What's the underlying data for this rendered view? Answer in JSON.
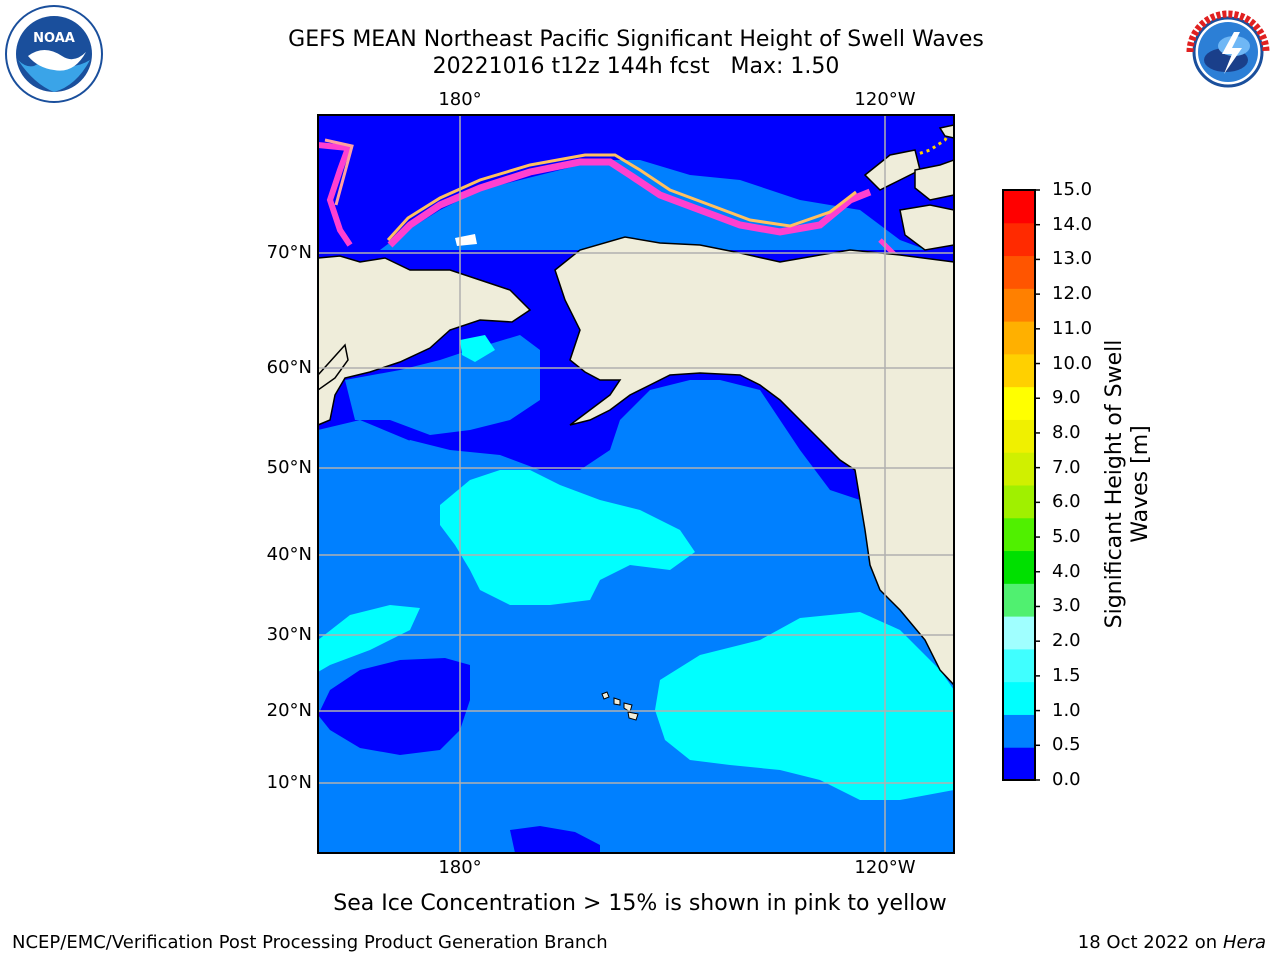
{
  "header": {
    "title_line1": "GEFS MEAN Northeast Pacific Significant Height of Swell Waves",
    "title_line2": "20221016 t12z 144h fcst   Max: 1.50"
  },
  "logos": {
    "left": "NOAA",
    "right": "NATIONAL WEATHER SERVICE"
  },
  "map": {
    "lon_labels": [
      "180°",
      "120°W"
    ],
    "lat_labels": [
      "70°N",
      "60°N",
      "50°N",
      "40°N",
      "30°N",
      "20°N",
      "10°N"
    ],
    "colors": {
      "land": "#efedda",
      "ocean_0_05": "#0000ff",
      "ocean_05_1": "#0080ff",
      "ocean_1_15": "#00ffff",
      "grid": "#b0b0b0"
    }
  },
  "colorbar": {
    "title": "Significant Height of Swell Waves [m]",
    "tick_labels": [
      "15.0",
      "14.0",
      "13.0",
      "12.0",
      "11.0",
      "10.0",
      "9.0",
      "8.0",
      "7.0",
      "6.0",
      "5.0",
      "4.0",
      "3.0",
      "2.0",
      "1.5",
      "1.0",
      "0.5",
      "0.0"
    ],
    "colors_bottom_to_top": [
      "#0000ff",
      "#0080ff",
      "#00ffff",
      "#40ffff",
      "#a0ffff",
      "#50f070",
      "#00e000",
      "#50f000",
      "#a0f000",
      "#d0f000",
      "#f0f000",
      "#ffff00",
      "#ffd000",
      "#ffb000",
      "#ff8000",
      "#ff5500",
      "#ff2a00",
      "#ff0000"
    ]
  },
  "note": "Sea Ice Concentration > 15% is shown in pink to yellow",
  "footer": {
    "left": "NCEP/EMC/Verification Post Processing Product Generation Branch",
    "right_date": "18 Oct 2022 on ",
    "right_host": "Hera"
  }
}
